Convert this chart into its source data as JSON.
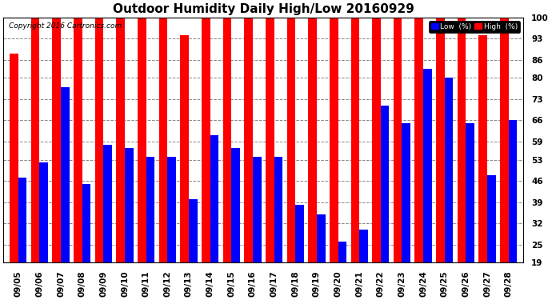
{
  "title": "Outdoor Humidity Daily High/Low 20160929",
  "copyright": "Copyright 2016 Cartronics.com",
  "background_color": "#ffffff",
  "plot_bg_color": "#ffffff",
  "dates": [
    "09/05",
    "09/06",
    "09/07",
    "09/08",
    "09/09",
    "09/10",
    "09/11",
    "09/12",
    "09/13",
    "09/14",
    "09/15",
    "09/16",
    "09/17",
    "09/18",
    "09/19",
    "09/20",
    "09/21",
    "09/22",
    "09/23",
    "09/24",
    "09/25",
    "09/26",
    "09/27",
    "09/28"
  ],
  "high": [
    88,
    100,
    100,
    100,
    100,
    100,
    100,
    100,
    94,
    100,
    100,
    100,
    100,
    100,
    100,
    100,
    100,
    100,
    100,
    100,
    100,
    100,
    94,
    100
  ],
  "low": [
    47,
    52,
    77,
    45,
    58,
    57,
    54,
    54,
    40,
    61,
    57,
    54,
    54,
    38,
    35,
    26,
    30,
    71,
    65,
    83,
    80,
    65,
    48,
    66
  ],
  "high_color": "#ff0000",
  "low_color": "#0000ff",
  "grid_color": "#888888",
  "yticks": [
    19,
    25,
    32,
    39,
    46,
    53,
    59,
    66,
    73,
    80,
    86,
    93,
    100
  ],
  "ymin": 19,
  "ymax": 100,
  "title_fontsize": 11,
  "tick_fontsize": 7.5,
  "legend_low_label": "Low  (%)",
  "legend_high_label": "High  (%)"
}
